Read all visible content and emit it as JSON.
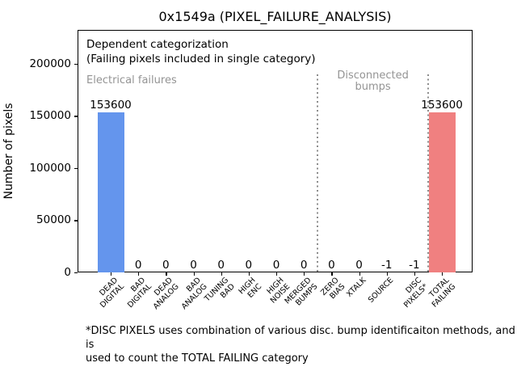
{
  "chart_data": {
    "type": "bar",
    "title": "0x1549a (PIXEL_FAILURE_ANALYSIS)",
    "ylabel": "Number of pixels",
    "xlabel": "",
    "categories": [
      "DEAD\nDIGITAL",
      "BAD\nDIGITAL",
      "DEAD\nANALOG",
      "BAD\nANALOG",
      "TUNING\nBAD",
      "HIGH\nENC",
      "HIGH\nNOISE",
      "MERGED\nBUMPS",
      "ZERO\nBIAS",
      "XTALK",
      "SOURCE",
      "DISC\nPIXELS*",
      "TOTAL\nFAILING"
    ],
    "values": [
      153600,
      0,
      0,
      0,
      0,
      0,
      0,
      0,
      0,
      0,
      -1,
      -1,
      153600
    ],
    "value_labels": [
      "153600",
      "0",
      "0",
      "0",
      "0",
      "0",
      "0",
      "0",
      "0",
      "0",
      "-1",
      "-1",
      "153600"
    ],
    "yticks": [
      0,
      50000,
      100000,
      150000,
      200000
    ],
    "ytick_labels": [
      "0",
      "50000",
      "100000",
      "150000",
      "200000"
    ],
    "ylim": [
      0,
      232500
    ],
    "grid": false,
    "bar_colors": {
      "0": "#6495ed",
      "12": "#f08080"
    },
    "default_bar_color": "#6495ed",
    "annotations": {
      "header_line1": "Dependent categorization",
      "header_line2": "(Failing pixels included in single category)",
      "section_labels": [
        {
          "lines": [
            "Electrical failures"
          ],
          "color": "#949494"
        },
        {
          "lines": [
            "Disconnected",
            "bumps"
          ],
          "color": "#949494"
        }
      ],
      "dividers_after_index": [
        7,
        11
      ]
    },
    "footnote_line1": "*DISC PIXELS uses combination of various disc. bump identificaiton methods, and is",
    "footnote_line2": "used to count the TOTAL FAILING category"
  },
  "colors": {
    "bar_dead_digital": "#6495ed",
    "bar_total_failing": "#f08080",
    "section_label_gray": "#949494",
    "divider_gray": "#8c8c8c",
    "spine_black": "#000000"
  }
}
